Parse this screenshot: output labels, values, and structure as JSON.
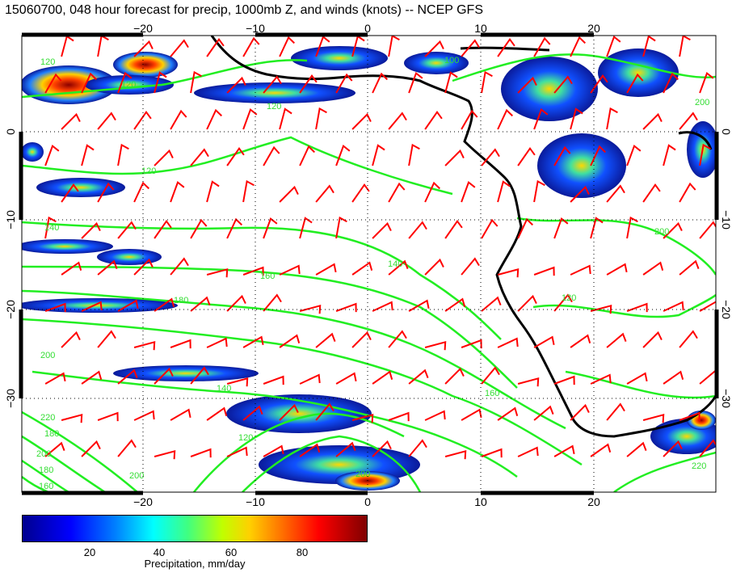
{
  "title": "15060700, 048 hour forecast for precip, 1000mb Z, and winds (knots) -- NCEP GFS",
  "colors": {
    "coastline": "#000000",
    "contour": "#22ee22",
    "wind_barb": "#ff0000",
    "grid": "#000000"
  },
  "axes": {
    "lon_ticks": [
      "−20",
      "−10",
      "0",
      "10",
      "20"
    ],
    "lat_ticks": [
      "0",
      "−10",
      "−20",
      "−30"
    ]
  },
  "contour_labels": [
    "120",
    "120",
    "120",
    "120",
    "100",
    "140",
    "140",
    "160",
    "180",
    "200",
    "220",
    "200",
    "180",
    "160",
    "140",
    "120",
    "200",
    "180",
    "160",
    "200",
    "220",
    "120",
    "200",
    "200"
  ],
  "colorbar": {
    "ticks": [
      "20",
      "40",
      "60",
      "80"
    ],
    "label": "Precipitation, mm/day"
  }
}
